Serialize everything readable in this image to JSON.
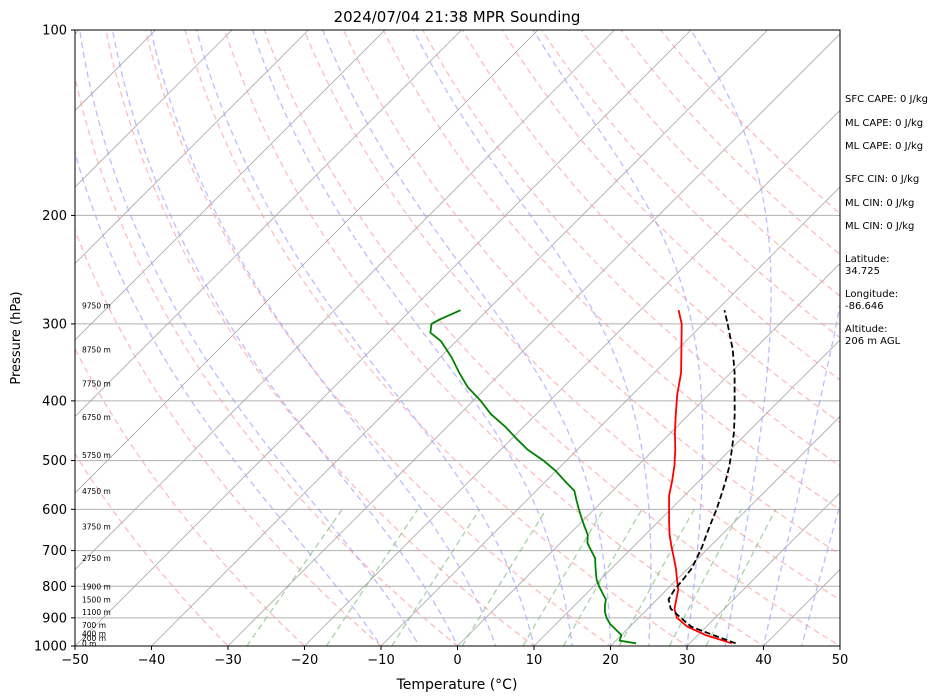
{
  "chart_data": {
    "type": "line",
    "title": "2024/07/04 21:38 MPR Sounding",
    "xlabel": "Temperature (°C)",
    "ylabel": "Pressure (hPa)",
    "xlim": [
      -50,
      50
    ],
    "ylim": [
      1000,
      100
    ],
    "y_scale": "log",
    "grid": true,
    "x_ticks": [
      "−50",
      "−40",
      "−30",
      "−20",
      "−10",
      "0",
      "10",
      "20",
      "30",
      "40",
      "50"
    ],
    "y_ticks": [
      {
        "p": 100,
        "label": "100"
      },
      {
        "p": 200,
        "label": "200"
      },
      {
        "p": 300,
        "label": "300"
      },
      {
        "p": 400,
        "label": "400"
      },
      {
        "p": 500,
        "label": "500"
      },
      {
        "p": 600,
        "label": "600"
      },
      {
        "p": 700,
        "label": "700"
      },
      {
        "p": 800,
        "label": "800"
      },
      {
        "p": 900,
        "label": "900"
      },
      {
        "p": 1000,
        "label": "1000"
      }
    ],
    "height_labels": [
      {
        "p": 280,
        "label": "9750 m"
      },
      {
        "p": 330,
        "label": "8750 m"
      },
      {
        "p": 375,
        "label": "7750 m"
      },
      {
        "p": 425,
        "label": "6750 m"
      },
      {
        "p": 490,
        "label": "5750 m"
      },
      {
        "p": 560,
        "label": "4750 m"
      },
      {
        "p": 640,
        "label": "3750 m"
      },
      {
        "p": 720,
        "label": "2750 m"
      },
      {
        "p": 800,
        "label": "1900 m"
      },
      {
        "p": 840,
        "label": "1500 m"
      },
      {
        "p": 880,
        "label": "1100 m"
      },
      {
        "p": 925,
        "label": "700 m"
      },
      {
        "p": 955,
        "label": "400 m"
      },
      {
        "p": 970,
        "label": "200 m"
      },
      {
        "p": 990,
        "label": "0 m"
      }
    ],
    "series": [
      {
        "color": "#ff0000",
        "p": [
          990,
          960,
          930,
          900,
          870,
          840,
          810,
          780,
          750,
          720,
          690,
          660,
          630,
          600,
          570,
          540,
          510,
          480,
          450,
          420,
          390,
          360,
          330,
          300,
          285
        ],
        "T": [
          35.5,
          31.0,
          27.5,
          25.0,
          23.5,
          22.5,
          21.5,
          20.0,
          18.5,
          16.8,
          15.0,
          13.2,
          11.5,
          9.8,
          8.0,
          6.5,
          4.8,
          2.8,
          0.5,
          -1.8,
          -4.2,
          -6.5,
          -9.5,
          -12.8,
          -15.0
        ]
      },
      {
        "color": "#008000",
        "p": [
          990,
          980,
          960,
          940,
          920,
          900,
          880,
          860,
          840,
          820,
          800,
          780,
          760,
          740,
          720,
          700,
          680,
          660,
          640,
          620,
          600,
          580,
          560,
          540,
          520,
          500,
          480,
          460,
          440,
          420,
          400,
          380,
          360,
          340,
          320,
          310,
          300,
          295,
          285
        ],
        "Td": [
          23.0,
          20.5,
          20.0,
          18.5,
          17.0,
          15.8,
          14.8,
          14.0,
          13.3,
          12.0,
          10.7,
          9.5,
          8.5,
          7.5,
          6.5,
          5.0,
          3.5,
          2.5,
          1.0,
          -0.5,
          -2.0,
          -3.5,
          -5.0,
          -7.5,
          -10.0,
          -13.0,
          -16.5,
          -19.5,
          -22.5,
          -26.0,
          -29.0,
          -32.5,
          -35.5,
          -38.5,
          -42.0,
          -44.5,
          -45.5,
          -45.0,
          -43.5
        ]
      },
      {
        "color": "#000000",
        "linestyle": "dashed",
        "p": [
          990,
          960,
          930,
          900,
          870,
          840,
          810,
          780,
          750,
          720,
          690,
          660,
          630,
          600,
          570,
          540,
          510,
          480,
          450,
          420,
          390,
          360,
          330,
          300,
          285
        ],
        "T": [
          36.0,
          32.0,
          28.0,
          25.5,
          23.0,
          21.5,
          21.0,
          20.8,
          20.5,
          19.8,
          19.0,
          18.0,
          17.0,
          16.0,
          14.8,
          13.5,
          12.0,
          10.2,
          8.2,
          5.9,
          3.3,
          0.5,
          -2.8,
          -6.8,
          -9.0
        ]
      }
    ],
    "isotherms_c": [
      -200,
      -190,
      -180,
      -170,
      -160,
      -150,
      -140,
      -130,
      -120,
      -110,
      -100,
      -90,
      -80,
      -70,
      -60,
      -50,
      -40,
      -30,
      -20,
      -10,
      0,
      10,
      20,
      30,
      40,
      50
    ],
    "dry_adiabats_c": [
      -30,
      -20,
      -10,
      0,
      10,
      20,
      30,
      40,
      50,
      60,
      70,
      80,
      90,
      100,
      110,
      120,
      130,
      140,
      150
    ],
    "moist_adiabats_c": [
      -10,
      -5,
      0,
      5,
      10,
      15,
      20,
      25,
      30,
      35,
      40,
      45
    ],
    "mixing_ratio_gkg": [
      0.4,
      1,
      2,
      4,
      7,
      10,
      16,
      24,
      32
    ],
    "stats": [
      "SFC CAPE: 0 J/kg",
      "ML CAPE: 0 J/kg",
      "ML CAPE: 0 J/kg",
      "SFC CIN: 0 J/kg",
      "ML CIN: 0 J/kg",
      "ML CIN: 0 J/kg"
    ],
    "location": {
      "lat_label": "Latitude:",
      "lat_value": "34.725",
      "lon_label": "Longitude:",
      "lon_value": "-86.646",
      "alt_label": "Altitude:",
      "alt_value": "206 m AGL"
    }
  }
}
